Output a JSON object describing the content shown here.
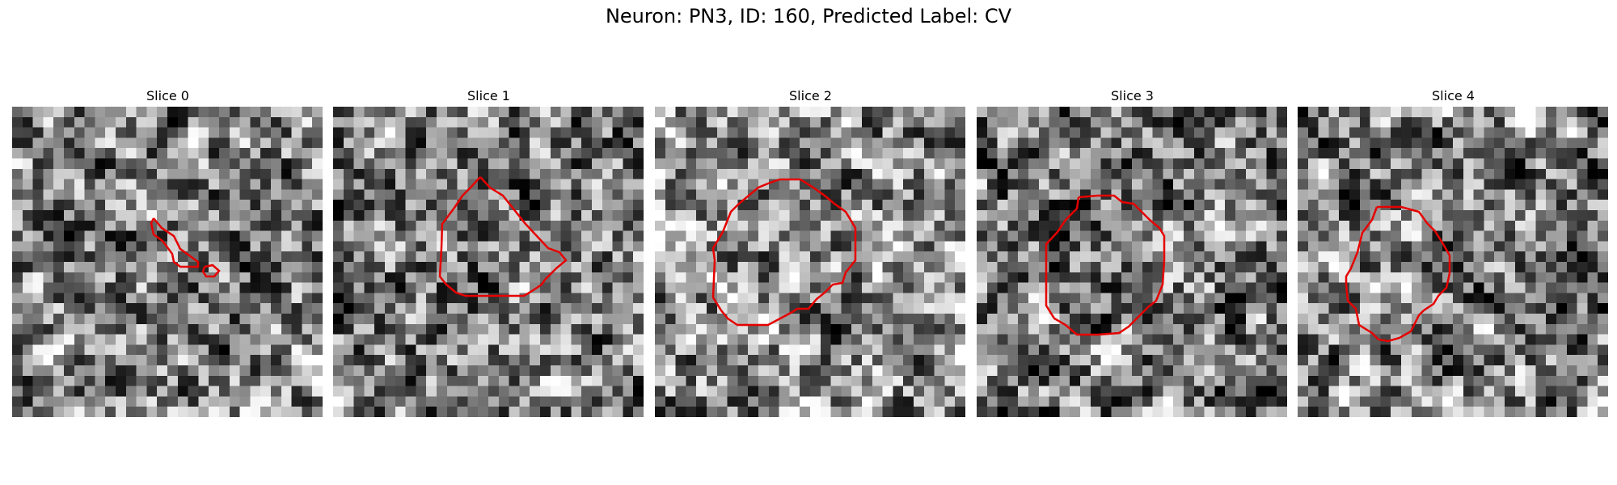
{
  "figure": {
    "title": "Neuron: PN3, ID: 160, Predicted Label: CV"
  },
  "colors": {
    "contour": "#e60000",
    "background": "#ffffff"
  },
  "slices": [
    {
      "label": "Slice 0",
      "seed": 11,
      "contrast": 0.55,
      "mean": 0.52
    },
    {
      "label": "Slice 1",
      "seed": 23,
      "contrast": 0.55,
      "mean": 0.48
    },
    {
      "label": "Slice 2",
      "seed": 37,
      "contrast": 0.55,
      "mean": 0.55
    },
    {
      "label": "Slice 3",
      "seed": 41,
      "contrast": 0.6,
      "mean": 0.45
    },
    {
      "label": "Slice 4",
      "seed": 53,
      "contrast": 0.55,
      "mean": 0.5
    }
  ]
}
